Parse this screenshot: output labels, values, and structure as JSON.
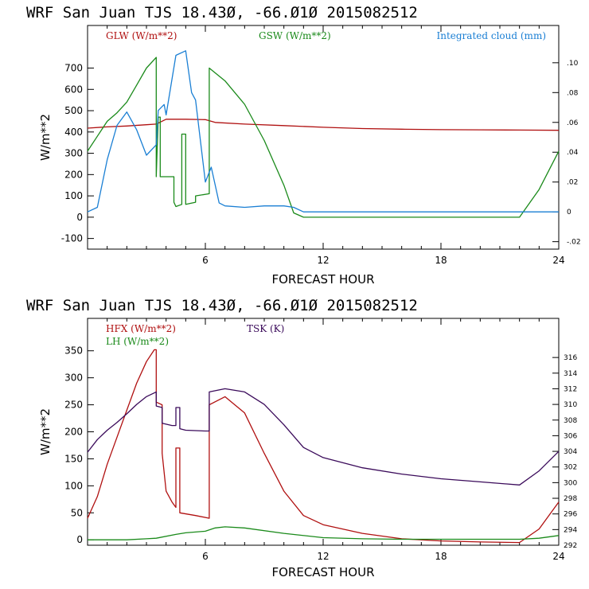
{
  "colors": {
    "red": "#b01010",
    "green": "#1a8a1a",
    "blue": "#1a7fd4",
    "purple": "#3a0a5a"
  },
  "chart_data": [
    {
      "type": "line",
      "title": "WRF  San Juan TJS  18.43Ø, -66.Ø1Ø  2015082512",
      "xlabel": "FORECAST HOUR",
      "ylabel": "W/m**2",
      "xlim": [
        0,
        24
      ],
      "ylim": [
        -150,
        900
      ],
      "y2lim": [
        -0.025,
        0.125
      ],
      "x_ticks": [
        "6",
        "12",
        "18",
        "24"
      ],
      "y_ticks": [
        "-100",
        "0",
        "100",
        "200",
        "300",
        "400",
        "500",
        "600",
        "700"
      ],
      "y2_ticks": [
        "-.02",
        "0",
        ".02",
        ".04",
        ".06",
        ".08",
        ".10"
      ],
      "series": [
        {
          "name": "GLW (W/m**2)",
          "color": "red",
          "axis": "left",
          "points": [
            [
              0,
              418
            ],
            [
              1,
              424
            ],
            [
              2,
              428
            ],
            [
              3,
              434
            ],
            [
              3.5,
              437
            ],
            [
              4,
              460
            ],
            [
              5,
              460
            ],
            [
              6,
              458
            ],
            [
              6.5,
              445
            ],
            [
              8,
              437
            ],
            [
              10,
              430
            ],
            [
              12,
              422
            ],
            [
              14,
              416
            ],
            [
              16,
              413
            ],
            [
              18,
              411
            ],
            [
              20,
              410
            ],
            [
              22,
              409
            ],
            [
              24,
              408
            ]
          ]
        },
        {
          "name": "GSW (W/m**2)",
          "color": "green",
          "axis": "left",
          "points": [
            [
              0,
              310
            ],
            [
              0.5,
              380
            ],
            [
              1,
              450
            ],
            [
              1.5,
              490
            ],
            [
              2,
              540
            ],
            [
              2.5,
              620
            ],
            [
              3,
              700
            ],
            [
              3.5,
              750
            ],
            [
              3.5,
              190
            ],
            [
              3.6,
              470
            ],
            [
              3.7,
              470
            ],
            [
              3.7,
              190
            ],
            [
              4.4,
              190
            ],
            [
              4.4,
              70
            ],
            [
              4.5,
              50
            ],
            [
              4.8,
              60
            ],
            [
              4.8,
              390
            ],
            [
              5.0,
              390
            ],
            [
              5.0,
              60
            ],
            [
              5.5,
              70
            ],
            [
              5.5,
              100
            ],
            [
              6.2,
              110
            ],
            [
              6.2,
              700
            ],
            [
              7,
              640
            ],
            [
              8,
              530
            ],
            [
              9,
              360
            ],
            [
              10,
              150
            ],
            [
              10.5,
              20
            ],
            [
              11,
              0
            ],
            [
              22,
              0
            ],
            [
              23,
              130
            ],
            [
              24,
              310
            ]
          ]
        },
        {
          "name": "Integrated cloud (mm)",
          "color": "blue",
          "axis": "right",
          "points": [
            [
              0,
              0
            ],
            [
              0.5,
              0.003
            ],
            [
              1,
              0.035
            ],
            [
              1.5,
              0.058
            ],
            [
              2,
              0.067
            ],
            [
              2.5,
              0.055
            ],
            [
              3,
              0.038
            ],
            [
              3.5,
              0.045
            ],
            [
              3.6,
              0.068
            ],
            [
              3.9,
              0.072
            ],
            [
              4,
              0.065
            ],
            [
              4.5,
              0.105
            ],
            [
              5,
              0.108
            ],
            [
              5.3,
              0.08
            ],
            [
              5.5,
              0.075
            ],
            [
              6,
              0.02
            ],
            [
              6.3,
              0.03
            ],
            [
              6.7,
              0.006
            ],
            [
              7,
              0.004
            ],
            [
              8,
              0.003
            ],
            [
              9,
              0.004
            ],
            [
              10,
              0.004
            ],
            [
              10.5,
              0.003
            ],
            [
              11,
              0
            ],
            [
              24,
              0
            ]
          ]
        }
      ]
    },
    {
      "type": "line",
      "title": "WRF  San Juan TJS  18.43Ø, -66.Ø1Ø  2015082512",
      "xlabel": "FORECAST HOUR",
      "ylabel": "W/m**2",
      "xlim": [
        0,
        24
      ],
      "ylim": [
        -10,
        410
      ],
      "y2lim": [
        292,
        321
      ],
      "x_ticks": [
        "6",
        "12",
        "18",
        "24"
      ],
      "y_ticks": [
        "0",
        "50",
        "100",
        "150",
        "200",
        "250",
        "300",
        "350"
      ],
      "y2_ticks": [
        "292",
        "294",
        "296",
        "298",
        "300",
        "302",
        "304",
        "306",
        "308",
        "310",
        "312",
        "314",
        "316"
      ],
      "series": [
        {
          "name": "HFX (W/m**2)",
          "color": "red",
          "axis": "left",
          "points": [
            [
              0,
              40
            ],
            [
              0.5,
              80
            ],
            [
              1,
              140
            ],
            [
              1.5,
              190
            ],
            [
              2,
              240
            ],
            [
              2.5,
              290
            ],
            [
              3,
              330
            ],
            [
              3.4,
              352
            ],
            [
              3.5,
              352
            ],
            [
              3.5,
              255
            ],
            [
              3.8,
              250
            ],
            [
              3.8,
              160
            ],
            [
              4.0,
              90
            ],
            [
              4.3,
              70
            ],
            [
              4.5,
              60
            ],
            [
              4.5,
              170
            ],
            [
              4.7,
              170
            ],
            [
              4.7,
              50
            ],
            [
              5.5,
              45
            ],
            [
              6.2,
              40
            ],
            [
              6.2,
              250
            ],
            [
              7,
              265
            ],
            [
              8,
              235
            ],
            [
              9,
              160
            ],
            [
              10,
              90
            ],
            [
              11,
              45
            ],
            [
              12,
              28
            ],
            [
              14,
              12
            ],
            [
              16,
              2
            ],
            [
              18,
              -2
            ],
            [
              20,
              -4
            ],
            [
              22,
              -5
            ],
            [
              23,
              20
            ],
            [
              24,
              70
            ]
          ]
        },
        {
          "name": "LH (W/m**2)",
          "color": "green",
          "axis": "left",
          "points": [
            [
              0,
              0
            ],
            [
              1,
              0
            ],
            [
              2,
              0
            ],
            [
              3,
              2
            ],
            [
              3.5,
              3
            ],
            [
              4.5,
              10
            ],
            [
              5,
              13
            ],
            [
              6,
              16
            ],
            [
              6.5,
              22
            ],
            [
              7,
              24
            ],
            [
              8,
              22
            ],
            [
              10,
              12
            ],
            [
              12,
              4
            ],
            [
              14,
              2
            ],
            [
              16,
              1
            ],
            [
              18,
              1
            ],
            [
              20,
              1
            ],
            [
              22,
              1
            ],
            [
              23,
              3
            ],
            [
              24,
              8
            ]
          ]
        },
        {
          "name": "TSK (K)",
          "color": "purple",
          "axis": "right",
          "points": [
            [
              0,
              303.9
            ],
            [
              0.5,
              305.5
            ],
            [
              1,
              306.7
            ],
            [
              1.5,
              307.7
            ],
            [
              2,
              308.8
            ],
            [
              2.5,
              310.0
            ],
            [
              3,
              311.0
            ],
            [
              3.5,
              311.6
            ],
            [
              3.5,
              309.8
            ],
            [
              3.8,
              309.6
            ],
            [
              3.8,
              307.6
            ],
            [
              4.3,
              307.3
            ],
            [
              4.5,
              307.3
            ],
            [
              4.5,
              309.6
            ],
            [
              4.7,
              309.6
            ],
            [
              4.7,
              306.9
            ],
            [
              5,
              306.7
            ],
            [
              6,
              306.6
            ],
            [
              6.2,
              306.6
            ],
            [
              6.2,
              311.6
            ],
            [
              7,
              312.0
            ],
            [
              8,
              311.6
            ],
            [
              9,
              310.0
            ],
            [
              10,
              307.4
            ],
            [
              11,
              304.5
            ],
            [
              12,
              303.2
            ],
            [
              14,
              301.9
            ],
            [
              16,
              301.1
            ],
            [
              18,
              300.5
            ],
            [
              20,
              300.1
            ],
            [
              22,
              299.7
            ],
            [
              23,
              301.5
            ],
            [
              24,
              304.0
            ]
          ]
        }
      ]
    }
  ]
}
